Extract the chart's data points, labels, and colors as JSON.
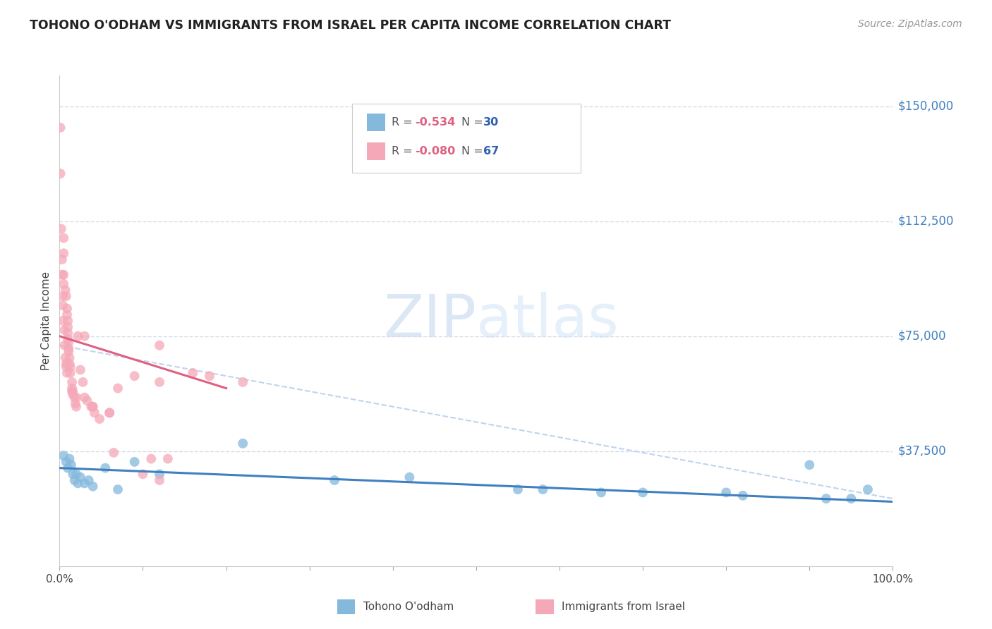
{
  "title": "TOHONO O'ODHAM VS IMMIGRANTS FROM ISRAEL PER CAPITA INCOME CORRELATION CHART",
  "source": "Source: ZipAtlas.com",
  "ylabel": "Per Capita Income",
  "ytick_labels": [
    "$37,500",
    "$75,000",
    "$112,500",
    "$150,000"
  ],
  "ytick_values": [
    37500,
    75000,
    112500,
    150000
  ],
  "ylim": [
    0,
    160000
  ],
  "xlim": [
    0.0,
    1.0
  ],
  "color_blue": "#85b9dc",
  "color_pink": "#f5a8b8",
  "color_trendline_blue": "#4080c0",
  "color_trendline_pink": "#e06080",
  "color_trendline_dashed": "#c0d4ee",
  "title_color": "#222222",
  "source_color": "#999999",
  "ytick_color": "#4080c0",
  "legend_val_pink": "#e06080",
  "legend_val_blue": "#3060b0",
  "watermark_zip_color": "#c8d8f0",
  "watermark_atlas_color": "#d8e8f8",
  "grid_color": "#d4dce8",
  "background_color": "#ffffff",
  "blue_scatter_x": [
    0.005,
    0.008,
    0.01,
    0.012,
    0.014,
    0.016,
    0.018,
    0.02,
    0.022,
    0.025,
    0.03,
    0.035,
    0.04,
    0.055,
    0.07,
    0.09,
    0.12,
    0.22,
    0.33,
    0.42,
    0.55,
    0.58,
    0.65,
    0.7,
    0.8,
    0.82,
    0.9,
    0.92,
    0.95,
    0.97
  ],
  "blue_scatter_y": [
    36000,
    34000,
    32000,
    35000,
    33000,
    30000,
    28000,
    30000,
    27000,
    29000,
    27000,
    28000,
    26000,
    32000,
    25000,
    34000,
    30000,
    40000,
    28000,
    29000,
    25000,
    25000,
    24000,
    24000,
    24000,
    23000,
    33000,
    22000,
    22000,
    25000
  ],
  "pink_scatter_x": [
    0.001,
    0.001,
    0.002,
    0.003,
    0.003,
    0.004,
    0.004,
    0.004,
    0.005,
    0.005,
    0.005,
    0.005,
    0.006,
    0.006,
    0.007,
    0.007,
    0.008,
    0.008,
    0.008,
    0.009,
    0.009,
    0.009,
    0.01,
    0.01,
    0.01,
    0.01,
    0.011,
    0.011,
    0.011,
    0.012,
    0.012,
    0.013,
    0.013,
    0.015,
    0.015,
    0.015,
    0.016,
    0.016,
    0.018,
    0.019,
    0.02,
    0.02,
    0.022,
    0.025,
    0.028,
    0.03,
    0.03,
    0.033,
    0.038,
    0.04,
    0.042,
    0.048,
    0.06,
    0.065,
    0.07,
    0.09,
    0.1,
    0.11,
    0.12,
    0.12,
    0.13,
    0.16,
    0.18,
    0.22,
    0.04,
    0.06,
    0.12
  ],
  "pink_scatter_y": [
    143000,
    128000,
    110000,
    100000,
    95000,
    88000,
    85000,
    80000,
    107000,
    102000,
    95000,
    92000,
    77000,
    72000,
    90000,
    68000,
    88000,
    66000,
    65000,
    84000,
    82000,
    63000,
    80000,
    78000,
    76000,
    74000,
    73000,
    71000,
    70000,
    68000,
    66000,
    65000,
    63000,
    60000,
    58000,
    57000,
    57000,
    56000,
    55000,
    53000,
    52000,
    55000,
    75000,
    64000,
    60000,
    75000,
    55000,
    54000,
    52000,
    52000,
    50000,
    48000,
    50000,
    37000,
    58000,
    62000,
    30000,
    35000,
    28000,
    72000,
    35000,
    63000,
    62000,
    60000,
    52000,
    50000,
    60000
  ],
  "blue_trend_x": [
    0.0,
    1.0
  ],
  "blue_trend_y": [
    32000,
    21000
  ],
  "pink_trend_x": [
    0.0,
    0.2
  ],
  "pink_trend_y": [
    75000,
    58000
  ],
  "dashed_trend_x": [
    0.0,
    1.0
  ],
  "dashed_trend_y": [
    72000,
    22000
  ]
}
